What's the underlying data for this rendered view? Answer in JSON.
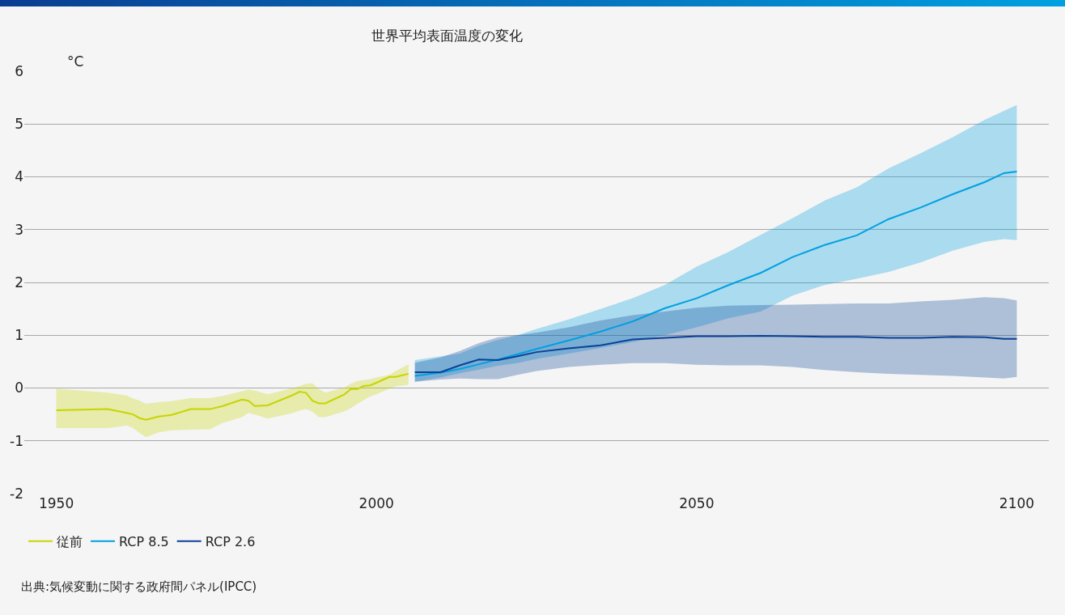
{
  "chart_data": {
    "type": "line",
    "title": "世界平均表面温度の変化",
    "ylabel": "°C",
    "xlim": [
      1945,
      2105
    ],
    "xticks": [
      1950,
      2000,
      2050,
      2100
    ],
    "ylim": [
      -2,
      6
    ],
    "yticks": [
      -2,
      -1,
      0,
      1,
      2,
      3,
      4,
      5,
      6
    ],
    "grid": "y",
    "legend": "bottom left",
    "line_style": "solid",
    "marker": "none",
    "annotations": [
      "出典:気候変動に関する政府間パネル(IPCC)"
    ],
    "series": [
      {
        "name": "従前",
        "color": "#c8d400",
        "x": [
          1950,
          1958,
          1961,
          1962,
          1963,
          1964,
          1966,
          1968,
          1971,
          1974,
          1976,
          1979,
          1980,
          1981,
          1983,
          1987,
          1988,
          1989,
          1990,
          1991,
          1992,
          1995,
          1996,
          1997,
          1998,
          1999,
          2000,
          2002,
          2003,
          2005
        ],
        "values": [
          -0.42,
          -0.4,
          -0.47,
          -0.5,
          -0.57,
          -0.6,
          -0.54,
          -0.51,
          -0.4,
          -0.4,
          -0.34,
          -0.22,
          -0.24,
          -0.34,
          -0.33,
          -0.13,
          -0.07,
          -0.09,
          -0.24,
          -0.29,
          -0.29,
          -0.12,
          -0.02,
          -0.02,
          0.04,
          0.05,
          0.1,
          0.21,
          0.21,
          0.27
        ],
        "upper": [
          -0.01,
          -0.09,
          -0.14,
          -0.2,
          -0.24,
          -0.3,
          -0.27,
          -0.25,
          -0.19,
          -0.19,
          -0.15,
          -0.06,
          -0.03,
          -0.05,
          -0.12,
          0.0,
          0.04,
          0.08,
          0.09,
          -0.02,
          -0.09,
          0.01,
          0.08,
          0.13,
          0.15,
          0.17,
          0.2,
          0.25,
          0.32,
          0.45
        ],
        "lower": [
          -0.76,
          -0.76,
          -0.71,
          -0.76,
          -0.85,
          -0.93,
          -0.84,
          -0.8,
          -0.79,
          -0.78,
          -0.66,
          -0.55,
          -0.47,
          -0.5,
          -0.58,
          -0.47,
          -0.43,
          -0.4,
          -0.45,
          -0.55,
          -0.55,
          -0.44,
          -0.38,
          -0.3,
          -0.23,
          -0.16,
          -0.12,
          -0.01,
          0.03,
          0.06
        ]
      },
      {
        "name": "RCP 8.5",
        "color": "#00a0e0",
        "x": [
          2006,
          2010,
          2013,
          2016,
          2019,
          2022,
          2025,
          2030,
          2035,
          2040,
          2045,
          2050,
          2055,
          2060,
          2065,
          2070,
          2075,
          2080,
          2085,
          2090,
          2095,
          2098,
          2100
        ],
        "values": [
          0.23,
          0.29,
          0.36,
          0.45,
          0.54,
          0.64,
          0.74,
          0.9,
          1.07,
          1.26,
          1.51,
          1.7,
          1.95,
          2.18,
          2.48,
          2.71,
          2.89,
          3.2,
          3.42,
          3.67,
          3.9,
          4.07,
          4.1
        ],
        "upper": [
          0.53,
          0.6,
          0.65,
          0.8,
          0.91,
          1.0,
          1.12,
          1.3,
          1.5,
          1.7,
          1.95,
          2.3,
          2.58,
          2.9,
          3.22,
          3.55,
          3.8,
          4.16,
          4.45,
          4.75,
          5.08,
          5.25,
          5.36
        ],
        "lower": [
          0.12,
          0.2,
          0.28,
          0.35,
          0.42,
          0.47,
          0.55,
          0.65,
          0.76,
          0.87,
          1.0,
          1.15,
          1.32,
          1.45,
          1.75,
          1.95,
          2.07,
          2.2,
          2.38,
          2.6,
          2.77,
          2.82,
          2.8
        ]
      },
      {
        "name": "RCP 2.6",
        "color": "#0a4196",
        "x": [
          2006,
          2010,
          2013,
          2016,
          2019,
          2022,
          2025,
          2030,
          2035,
          2040,
          2045,
          2050,
          2055,
          2060,
          2065,
          2070,
          2075,
          2080,
          2085,
          2090,
          2095,
          2098,
          2100
        ],
        "values": [
          0.3,
          0.3,
          0.43,
          0.54,
          0.53,
          0.6,
          0.68,
          0.75,
          0.81,
          0.92,
          0.95,
          0.98,
          0.98,
          0.99,
          0.98,
          0.97,
          0.97,
          0.95,
          0.95,
          0.97,
          0.96,
          0.93,
          0.93
        ],
        "upper": [
          0.48,
          0.58,
          0.7,
          0.85,
          0.96,
          1.0,
          1.05,
          1.15,
          1.28,
          1.38,
          1.45,
          1.52,
          1.56,
          1.57,
          1.58,
          1.59,
          1.6,
          1.6,
          1.64,
          1.67,
          1.72,
          1.7,
          1.66
        ],
        "lower": [
          0.12,
          0.16,
          0.18,
          0.17,
          0.17,
          0.25,
          0.32,
          0.4,
          0.44,
          0.47,
          0.47,
          0.44,
          0.43,
          0.43,
          0.4,
          0.34,
          0.3,
          0.27,
          0.25,
          0.23,
          0.2,
          0.18,
          0.21
        ]
      }
    ]
  }
}
